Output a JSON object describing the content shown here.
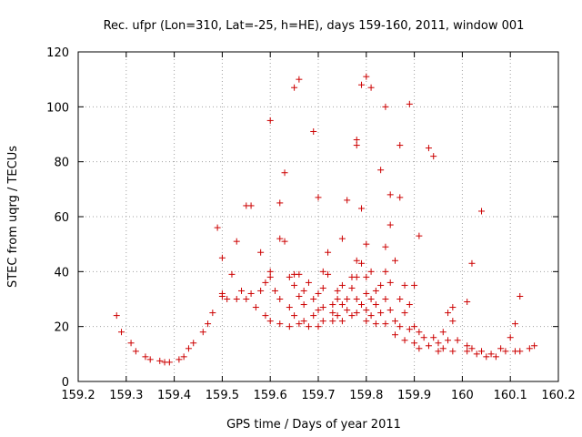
{
  "chart_data": {
    "type": "scatter",
    "title": "Rec. ufpr (Lon=310, Lat=-25, h=HE), days 159-160, 2011, window 001",
    "xlabel": "GPS time / Days of year 2011",
    "ylabel": "STEC from uqrg / TECUs",
    "xlim": [
      159.2,
      160.2
    ],
    "ylim": [
      0,
      120
    ],
    "xticks": [
      "159.2",
      "159.3",
      "159.4",
      "159.5",
      "159.6",
      "159.7",
      "159.8",
      "159.9",
      "160",
      "160.1",
      "160.2"
    ],
    "yticks": [
      "0",
      "20",
      "40",
      "60",
      "80",
      "100",
      "120"
    ],
    "grid": true,
    "marker": "+",
    "color": "#cc0000",
    "series": [
      {
        "name": "STEC",
        "points": [
          [
            159.28,
            24
          ],
          [
            159.29,
            18
          ],
          [
            159.31,
            14
          ],
          [
            159.32,
            11
          ],
          [
            159.34,
            9
          ],
          [
            159.35,
            8
          ],
          [
            159.37,
            7.5
          ],
          [
            159.38,
            7
          ],
          [
            159.39,
            7
          ],
          [
            159.41,
            8
          ],
          [
            159.42,
            9
          ],
          [
            159.43,
            12
          ],
          [
            159.44,
            14
          ],
          [
            159.46,
            18
          ],
          [
            159.47,
            21
          ],
          [
            159.48,
            25
          ],
          [
            159.49,
            56
          ],
          [
            159.5,
            45
          ],
          [
            159.5,
            32
          ],
          [
            159.5,
            31
          ],
          [
            159.51,
            30
          ],
          [
            159.52,
            39
          ],
          [
            159.53,
            51
          ],
          [
            159.53,
            30
          ],
          [
            159.54,
            33
          ],
          [
            159.55,
            64
          ],
          [
            159.55,
            30
          ],
          [
            159.56,
            64
          ],
          [
            159.56,
            32
          ],
          [
            159.57,
            27
          ],
          [
            159.58,
            47
          ],
          [
            159.58,
            33
          ],
          [
            159.59,
            24
          ],
          [
            159.59,
            36
          ],
          [
            159.6,
            95
          ],
          [
            159.6,
            40
          ],
          [
            159.6,
            38
          ],
          [
            159.6,
            22
          ],
          [
            159.61,
            33
          ],
          [
            159.62,
            65
          ],
          [
            159.62,
            52
          ],
          [
            159.62,
            30
          ],
          [
            159.62,
            21
          ],
          [
            159.63,
            76
          ],
          [
            159.63,
            51
          ],
          [
            159.64,
            38
          ],
          [
            159.64,
            27
          ],
          [
            159.64,
            20
          ],
          [
            159.65,
            39
          ],
          [
            159.65,
            35
          ],
          [
            159.65,
            24
          ],
          [
            159.65,
            107
          ],
          [
            159.66,
            110
          ],
          [
            159.66,
            39
          ],
          [
            159.66,
            31
          ],
          [
            159.66,
            21
          ],
          [
            159.67,
            33
          ],
          [
            159.67,
            28
          ],
          [
            159.67,
            22
          ],
          [
            159.68,
            36
          ],
          [
            159.68,
            20
          ],
          [
            159.69,
            91
          ],
          [
            159.69,
            30
          ],
          [
            159.69,
            24
          ],
          [
            159.7,
            67
          ],
          [
            159.7,
            32
          ],
          [
            159.7,
            26
          ],
          [
            159.7,
            20
          ],
          [
            159.71,
            40
          ],
          [
            159.71,
            34
          ],
          [
            159.71,
            27
          ],
          [
            159.71,
            22
          ],
          [
            159.72,
            47
          ],
          [
            159.72,
            39
          ],
          [
            159.73,
            28
          ],
          [
            159.73,
            25
          ],
          [
            159.73,
            22
          ],
          [
            159.74,
            33
          ],
          [
            159.74,
            30
          ],
          [
            159.74,
            24
          ],
          [
            159.75,
            35
          ],
          [
            159.75,
            52
          ],
          [
            159.75,
            28
          ],
          [
            159.75,
            22
          ],
          [
            159.76,
            66
          ],
          [
            159.76,
            30
          ],
          [
            159.76,
            26
          ],
          [
            159.77,
            38
          ],
          [
            159.77,
            34
          ],
          [
            159.77,
            24
          ],
          [
            159.78,
            88
          ],
          [
            159.78,
            86
          ],
          [
            159.78,
            44
          ],
          [
            159.78,
            38
          ],
          [
            159.78,
            30
          ],
          [
            159.78,
            25
          ],
          [
            159.79,
            108
          ],
          [
            159.79,
            63
          ],
          [
            159.79,
            43
          ],
          [
            159.79,
            28
          ],
          [
            159.8,
            111
          ],
          [
            159.8,
            50
          ],
          [
            159.8,
            38
          ],
          [
            159.8,
            32
          ],
          [
            159.8,
            26
          ],
          [
            159.8,
            22
          ],
          [
            159.81,
            107
          ],
          [
            159.81,
            40
          ],
          [
            159.81,
            30
          ],
          [
            159.81,
            24
          ],
          [
            159.82,
            33
          ],
          [
            159.82,
            28
          ],
          [
            159.82,
            21
          ],
          [
            159.83,
            77
          ],
          [
            159.83,
            35
          ],
          [
            159.83,
            25
          ],
          [
            159.84,
            100
          ],
          [
            159.84,
            49
          ],
          [
            159.84,
            40
          ],
          [
            159.84,
            30
          ],
          [
            159.84,
            21
          ],
          [
            159.85,
            68
          ],
          [
            159.85,
            57
          ],
          [
            159.85,
            36
          ],
          [
            159.85,
            26
          ],
          [
            159.86,
            44
          ],
          [
            159.86,
            22
          ],
          [
            159.86,
            17
          ],
          [
            159.87,
            86
          ],
          [
            159.87,
            67
          ],
          [
            159.87,
            30
          ],
          [
            159.87,
            20
          ],
          [
            159.88,
            35
          ],
          [
            159.88,
            25
          ],
          [
            159.88,
            15
          ],
          [
            159.89,
            101
          ],
          [
            159.89,
            28
          ],
          [
            159.89,
            19
          ],
          [
            159.9,
            35
          ],
          [
            159.9,
            20
          ],
          [
            159.9,
            14
          ],
          [
            159.91,
            53
          ],
          [
            159.91,
            18
          ],
          [
            159.91,
            12
          ],
          [
            159.92,
            16
          ],
          [
            159.93,
            85
          ],
          [
            159.93,
            13
          ],
          [
            159.94,
            82
          ],
          [
            159.94,
            16
          ],
          [
            159.95,
            14
          ],
          [
            159.95,
            11
          ],
          [
            159.96,
            18
          ],
          [
            159.96,
            12
          ],
          [
            159.97,
            25
          ],
          [
            159.97,
            15
          ],
          [
            159.98,
            27
          ],
          [
            159.98,
            22
          ],
          [
            159.98,
            11
          ],
          [
            159.99,
            15
          ],
          [
            160.01,
            29
          ],
          [
            160.01,
            13
          ],
          [
            160.01,
            11
          ],
          [
            160.02,
            43
          ],
          [
            160.02,
            12
          ],
          [
            160.03,
            10
          ],
          [
            160.04,
            62
          ],
          [
            160.04,
            11
          ],
          [
            160.05,
            9
          ],
          [
            160.06,
            10
          ],
          [
            160.07,
            9
          ],
          [
            160.08,
            12
          ],
          [
            160.09,
            11
          ],
          [
            160.1,
            16
          ],
          [
            160.11,
            21
          ],
          [
            160.11,
            11
          ],
          [
            160.12,
            31
          ],
          [
            160.12,
            11
          ],
          [
            160.14,
            12
          ],
          [
            160.15,
            13
          ]
        ]
      }
    ]
  }
}
